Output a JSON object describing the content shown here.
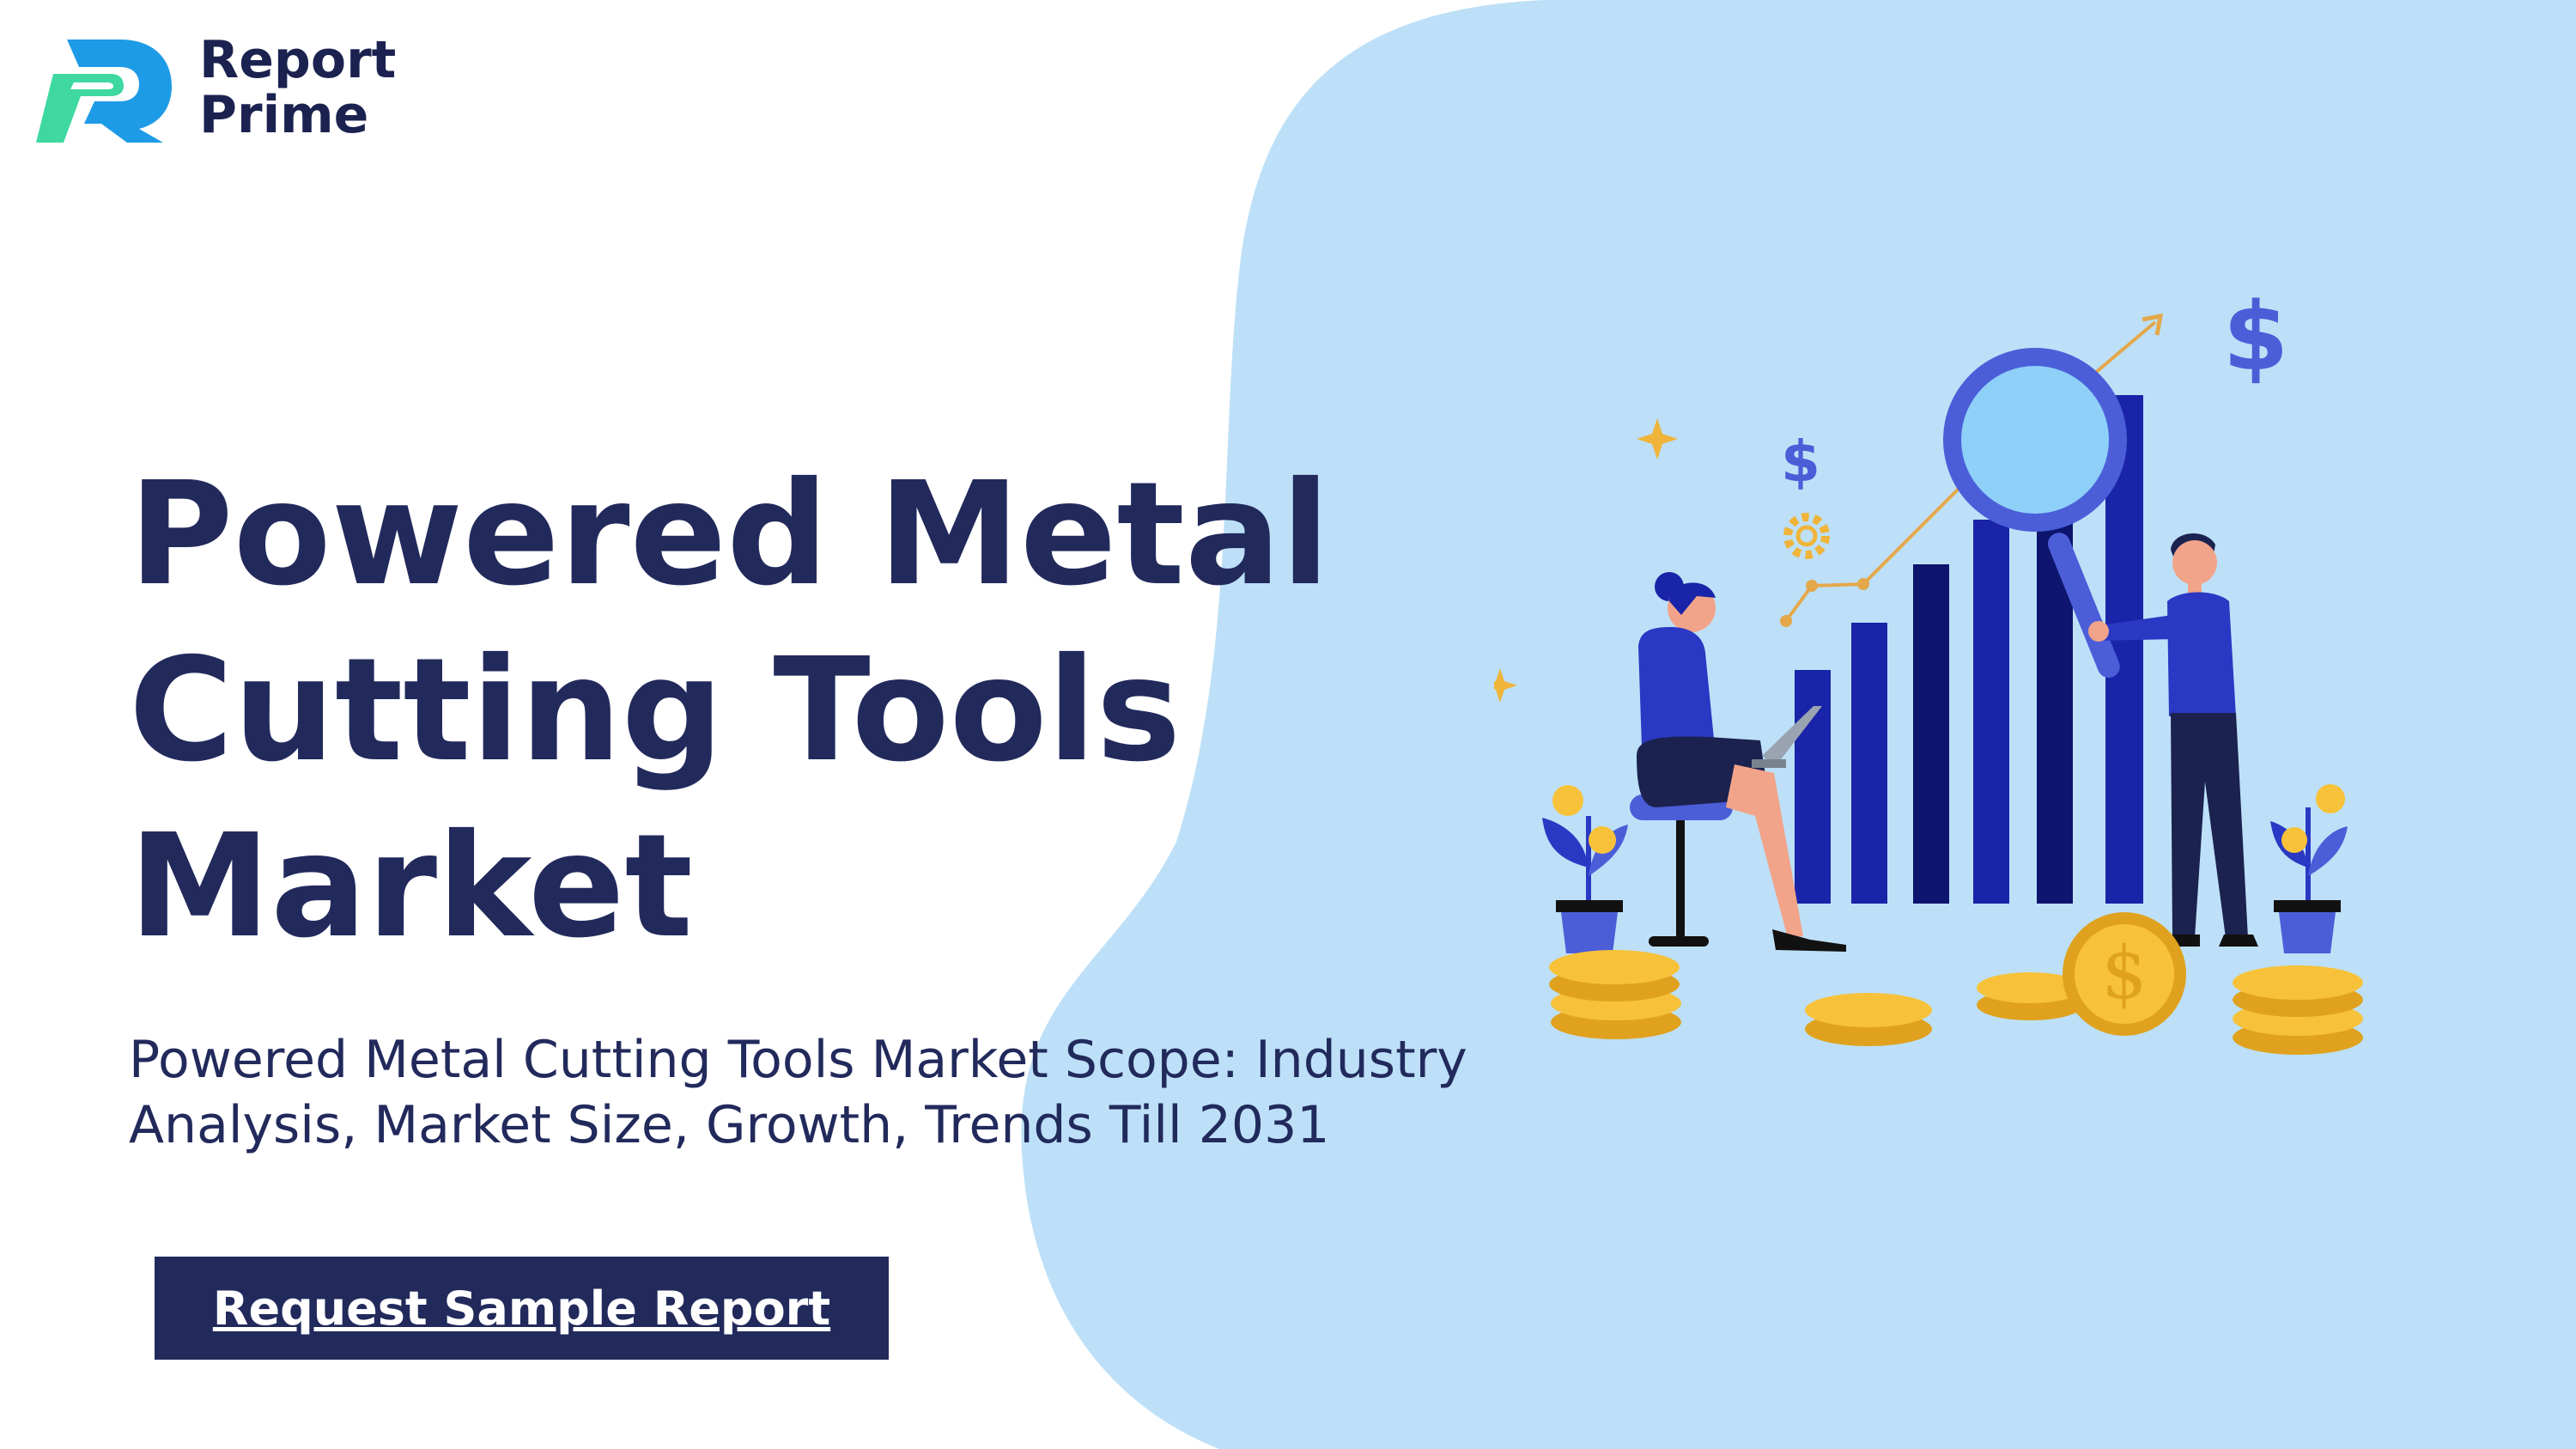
{
  "brand": {
    "name_line1": "Report",
    "name_line2": "Prime",
    "logo_icon": "report-prime-logo-icon"
  },
  "hero": {
    "title_line1": "Powered Metal",
    "title_line2": "Cutting Tools",
    "title_line3": "Market",
    "subtitle_line1": "Powered Metal Cutting Tools Market Scope: Industry",
    "subtitle_line2": "Analysis, Market Size, Growth, Trends Till 2031",
    "cta_label": "Request Sample Report"
  },
  "colors": {
    "navy": "#222a5c",
    "blob": "#bde0f8",
    "accent_blue": "#1a24a8",
    "coin": "#f7c23a"
  }
}
